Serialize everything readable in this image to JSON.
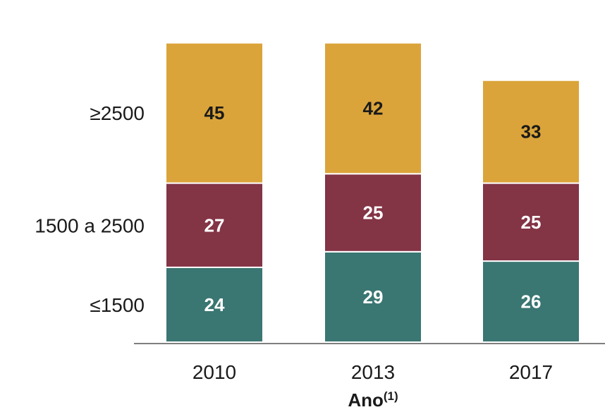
{
  "chart_data": {
    "type": "bar",
    "stacked": true,
    "categories": [
      "2010",
      "2013",
      "2017"
    ],
    "series": [
      {
        "name": "≤1500",
        "values": [
          24,
          29,
          26
        ],
        "color": "#3a7672",
        "label_color": "#ffffff"
      },
      {
        "name": "1500 a 2500",
        "values": [
          27,
          25,
          25
        ],
        "color": "#833445",
        "label_color": "#ffffff"
      },
      {
        "name": "≥2500",
        "values": [
          45,
          42,
          33
        ],
        "color": "#dba43a",
        "label_color": "#1a1a1a"
      }
    ],
    "xlabel": "Ano",
    "xlabel_superscript": "(1)",
    "legend_placement": "left",
    "grid": false,
    "ylim": [
      0,
      96
    ]
  }
}
